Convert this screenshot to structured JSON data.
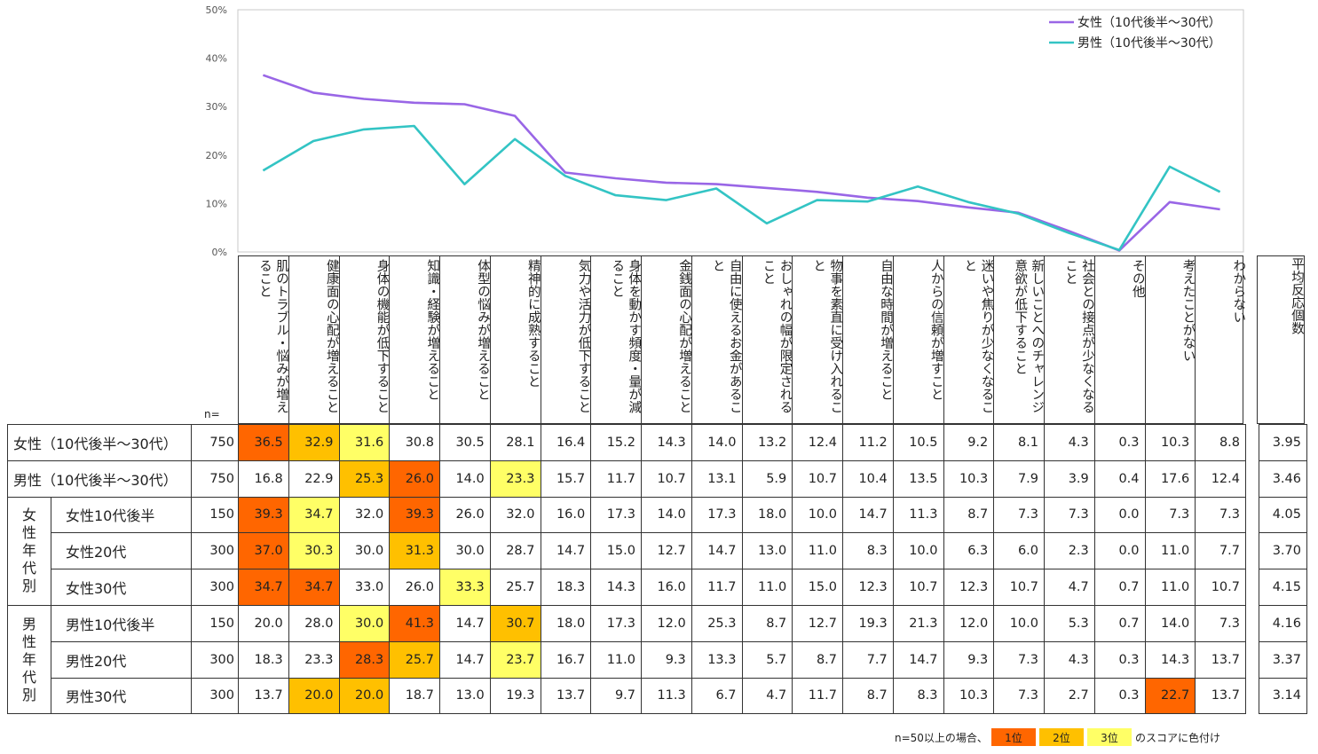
{
  "chart_data": {
    "type": "line",
    "ylim": [
      0,
      50
    ],
    "yticks": [
      "0%",
      "10%",
      "20%",
      "30%",
      "40%",
      "50%"
    ],
    "categories": [
      "肌のトラブル・悩みが増えること",
      "健康面の心配が増えること",
      "身体の機能が低下すること",
      "知識・経験が増えること",
      "体型の悩みが増えること",
      "精神的に成熟すること",
      "気力や活力が低下すること",
      "身体を動かす頻度・量が減ること",
      "金銭面の心配が増えること",
      "自由に使えるお金があること",
      "おしゃれの幅が限定されること",
      "物事を素直に受け入れること",
      "自由な時間が増えること",
      "人からの信頼が増すこと",
      "迷いや焦りが少なくなること",
      "新しいことへのチャレンジ意欲が低下すること",
      "社会との接点が少なくなること",
      "その他",
      "考えたことがない",
      "わからない"
    ],
    "series": [
      {
        "name": "女性（10代後半～30代）",
        "color": "#9966e6",
        "values": [
          36.5,
          32.9,
          31.6,
          30.8,
          30.5,
          28.1,
          16.4,
          15.2,
          14.3,
          14.0,
          13.2,
          12.4,
          11.2,
          10.5,
          9.2,
          8.1,
          4.3,
          0.3,
          10.3,
          8.8
        ]
      },
      {
        "name": "男性（10代後半～30代）",
        "color": "#33c4c4",
        "values": [
          16.8,
          22.9,
          25.3,
          26.0,
          14.0,
          23.3,
          15.7,
          11.7,
          10.7,
          13.1,
          5.9,
          10.7,
          10.4,
          13.5,
          10.3,
          7.9,
          3.9,
          0.4,
          17.6,
          12.4
        ]
      }
    ]
  },
  "table": {
    "n_header": "n=",
    "avg_header": "平均反応個数",
    "rows": [
      {
        "group": "",
        "label": "女性（10代後半～30代）",
        "n": "750",
        "values": [
          "36.5",
          "32.9",
          "31.6",
          "30.8",
          "30.5",
          "28.1",
          "16.4",
          "15.2",
          "14.3",
          "14.0",
          "13.2",
          "12.4",
          "11.2",
          "10.5",
          "9.2",
          "8.1",
          "4.3",
          "0.3",
          "10.3",
          "8.8"
        ],
        "ranks": [
          1,
          2,
          3,
          0,
          0,
          0,
          0,
          0,
          0,
          0,
          0,
          0,
          0,
          0,
          0,
          0,
          0,
          0,
          0,
          0
        ],
        "avg": "3.95"
      },
      {
        "group": "",
        "label": "男性（10代後半～30代）",
        "n": "750",
        "values": [
          "16.8",
          "22.9",
          "25.3",
          "26.0",
          "14.0",
          "23.3",
          "15.7",
          "11.7",
          "10.7",
          "13.1",
          "5.9",
          "10.7",
          "10.4",
          "13.5",
          "10.3",
          "7.9",
          "3.9",
          "0.4",
          "17.6",
          "12.4"
        ],
        "ranks": [
          0,
          0,
          2,
          1,
          0,
          3,
          0,
          0,
          0,
          0,
          0,
          0,
          0,
          0,
          0,
          0,
          0,
          0,
          0,
          0
        ],
        "avg": "3.46"
      },
      {
        "group": "女性年代別",
        "label": "女性10代後半",
        "n": "150",
        "values": [
          "39.3",
          "34.7",
          "32.0",
          "39.3",
          "26.0",
          "32.0",
          "16.0",
          "17.3",
          "14.0",
          "17.3",
          "18.0",
          "10.0",
          "14.7",
          "11.3",
          "8.7",
          "7.3",
          "7.3",
          "0.0",
          "7.3",
          "7.3"
        ],
        "ranks": [
          1,
          3,
          0,
          1,
          0,
          0,
          0,
          0,
          0,
          0,
          0,
          0,
          0,
          0,
          0,
          0,
          0,
          0,
          0,
          0
        ],
        "avg": "4.05"
      },
      {
        "group": "女性年代別",
        "label": "女性20代",
        "n": "300",
        "values": [
          "37.0",
          "30.3",
          "30.0",
          "31.3",
          "30.0",
          "28.7",
          "14.7",
          "15.0",
          "12.7",
          "14.7",
          "13.0",
          "11.0",
          "8.3",
          "10.0",
          "6.3",
          "6.0",
          "2.3",
          "0.0",
          "11.0",
          "7.7"
        ],
        "ranks": [
          1,
          3,
          0,
          2,
          0,
          0,
          0,
          0,
          0,
          0,
          0,
          0,
          0,
          0,
          0,
          0,
          0,
          0,
          0,
          0
        ],
        "avg": "3.70"
      },
      {
        "group": "女性年代別",
        "label": "女性30代",
        "n": "300",
        "values": [
          "34.7",
          "34.7",
          "33.0",
          "26.0",
          "33.3",
          "25.7",
          "18.3",
          "14.3",
          "16.0",
          "11.7",
          "11.0",
          "15.0",
          "12.3",
          "10.7",
          "12.3",
          "10.7",
          "4.7",
          "0.7",
          "11.0",
          "10.7"
        ],
        "ranks": [
          1,
          1,
          0,
          0,
          3,
          0,
          0,
          0,
          0,
          0,
          0,
          0,
          0,
          0,
          0,
          0,
          0,
          0,
          0,
          0
        ],
        "avg": "4.15"
      },
      {
        "group": "男性年代別",
        "label": "男性10代後半",
        "n": "150",
        "values": [
          "20.0",
          "28.0",
          "30.0",
          "41.3",
          "14.7",
          "30.7",
          "18.0",
          "17.3",
          "12.0",
          "25.3",
          "8.7",
          "12.7",
          "19.3",
          "21.3",
          "12.0",
          "10.0",
          "5.3",
          "0.7",
          "14.0",
          "7.3"
        ],
        "ranks": [
          0,
          0,
          3,
          1,
          0,
          2,
          0,
          0,
          0,
          0,
          0,
          0,
          0,
          0,
          0,
          0,
          0,
          0,
          0,
          0
        ],
        "avg": "4.16"
      },
      {
        "group": "男性年代別",
        "label": "男性20代",
        "n": "300",
        "values": [
          "18.3",
          "23.3",
          "28.3",
          "25.7",
          "14.7",
          "23.7",
          "16.7",
          "11.0",
          "9.3",
          "13.3",
          "5.7",
          "8.7",
          "7.7",
          "14.7",
          "9.3",
          "7.3",
          "4.3",
          "0.3",
          "14.3",
          "13.7"
        ],
        "ranks": [
          0,
          0,
          1,
          2,
          0,
          3,
          0,
          0,
          0,
          0,
          0,
          0,
          0,
          0,
          0,
          0,
          0,
          0,
          0,
          0
        ],
        "avg": "3.37"
      },
      {
        "group": "男性年代別",
        "label": "男性30代",
        "n": "300",
        "values": [
          "13.7",
          "20.0",
          "20.0",
          "18.7",
          "13.0",
          "19.3",
          "13.7",
          "9.7",
          "11.3",
          "6.7",
          "4.7",
          "11.7",
          "8.7",
          "8.3",
          "10.3",
          "7.3",
          "2.7",
          "0.3",
          "22.7",
          "13.7"
        ],
        "ranks": [
          0,
          2,
          2,
          0,
          0,
          0,
          0,
          0,
          0,
          0,
          0,
          0,
          0,
          0,
          0,
          0,
          0,
          0,
          1,
          0
        ],
        "avg": "3.14"
      }
    ]
  },
  "note": {
    "prefix": "n=50以上の場合、",
    "rank1": "1位",
    "rank2": "2位",
    "rank3": "3位",
    "suffix": "のスコアに色付け",
    "colors": {
      "rank1": "#ff6600",
      "rank2": "#ffc000",
      "rank3": "#ffff66"
    }
  }
}
